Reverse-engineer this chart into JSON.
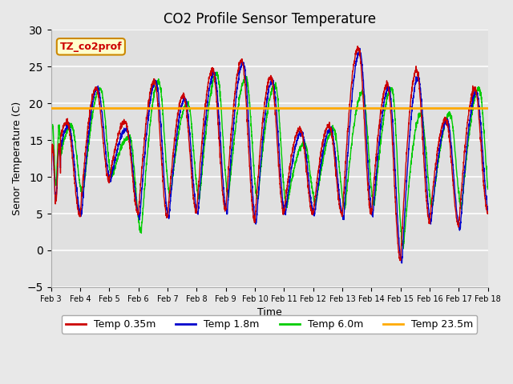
{
  "title": "CO2 Profile Sensor Temperature",
  "xlabel": "Time",
  "ylabel": "Senor Temperature (C)",
  "ylim": [
    -5,
    30
  ],
  "yticks": [
    -5,
    0,
    5,
    10,
    15,
    20,
    25,
    30
  ],
  "xtick_labels": [
    "Feb 3",
    "Feb 4",
    "Feb 5",
    "Feb 6",
    "Feb 7",
    "Feb 8",
    "Feb 9",
    "Feb 10",
    "Feb 11",
    "Feb 12",
    "Feb 13",
    "Feb 14",
    "Feb 15",
    "Feb 16",
    "Feb 17",
    "Feb 18"
  ],
  "colors": {
    "red": "#cc0000",
    "blue": "#0000cc",
    "green": "#00cc00",
    "orange": "#ffaa00"
  },
  "horizontal_line_y": 19.4,
  "legend_label": "TZ_co2prof",
  "legend_box_facecolor": "#ffffcc",
  "legend_box_edgecolor": "#cc8800",
  "fig_facecolor": "#e8e8e8",
  "ax_facecolor": "#e0e0e0",
  "grid_color": "#ffffff",
  "series_labels": [
    "Temp 0.35m",
    "Temp 1.8m",
    "Temp 6.0m",
    "Temp 23.5m"
  ],
  "peak_values_red": [
    17.5,
    22.0,
    17.5,
    23.0,
    21.0,
    24.5,
    25.8,
    23.5,
    16.5,
    17.0,
    27.5,
    22.5,
    24.5,
    17.8,
    22.0,
    21.0
  ],
  "trough_values_red": [
    6.5,
    4.8,
    9.5,
    5.0,
    4.5,
    5.2,
    5.5,
    4.0,
    5.2,
    5.0,
    4.8,
    5.0,
    -1.2,
    4.0,
    3.5,
    5.2
  ],
  "peak_values_blue": [
    17.0,
    22.0,
    16.5,
    23.0,
    20.5,
    24.0,
    25.5,
    23.0,
    16.0,
    16.5,
    27.0,
    22.0,
    23.5,
    17.5,
    21.5,
    20.5
  ],
  "trough_values_blue": [
    6.0,
    4.8,
    9.5,
    4.5,
    4.5,
    5.0,
    5.2,
    3.8,
    5.0,
    5.0,
    4.5,
    4.8,
    -1.5,
    4.0,
    3.0,
    5.0
  ],
  "peak_values_green": [
    17.0,
    22.0,
    15.5,
    23.0,
    20.0,
    24.0,
    23.5,
    22.5,
    14.5,
    16.5,
    21.5,
    22.0,
    18.5,
    18.5,
    22.0,
    20.5
  ],
  "trough_values_green": [
    7.5,
    7.5,
    10.0,
    2.5,
    7.5,
    7.0,
    7.5,
    7.0,
    6.0,
    6.5,
    6.0,
    6.2,
    0.5,
    6.0,
    6.0,
    6.0
  ]
}
